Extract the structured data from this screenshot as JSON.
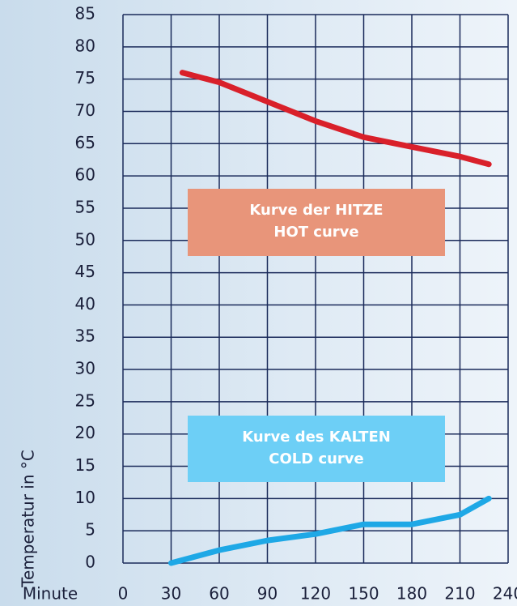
{
  "chart_data": {
    "type": "line",
    "xlabel": "Minute",
    "ylabel": "Temperatur in °C",
    "xlim": [
      0,
      240
    ],
    "xticks": [
      0,
      30,
      60,
      90,
      120,
      150,
      180,
      210,
      240
    ],
    "ylim": [
      0,
      85
    ],
    "yticks": [
      0,
      5,
      10,
      15,
      20,
      25,
      30,
      35,
      40,
      45,
      50,
      55,
      60,
      65,
      70,
      75,
      80,
      85
    ],
    "grid": true,
    "series": [
      {
        "color": "#d9202a",
        "x": [
          37,
          60,
          90,
          120,
          150,
          180,
          210,
          228
        ],
        "values": [
          76,
          74.5,
          71.5,
          68.5,
          66,
          64.5,
          63,
          61.8
        ]
      },
      {
        "color": "#1ea8e6",
        "x": [
          30,
          60,
          90,
          120,
          150,
          180,
          210,
          228
        ],
        "values": [
          0,
          2,
          3.5,
          4.5,
          6,
          6,
          7.5,
          10
        ]
      }
    ],
    "annotations": [
      {
        "lines": [
          "Kurve der HITZE",
          "HOT curve"
        ],
        "color": "#e8957a"
      },
      {
        "lines": [
          "Kurve des KALTEN",
          "COLD curve"
        ],
        "color": "#6dcff6"
      }
    ]
  }
}
